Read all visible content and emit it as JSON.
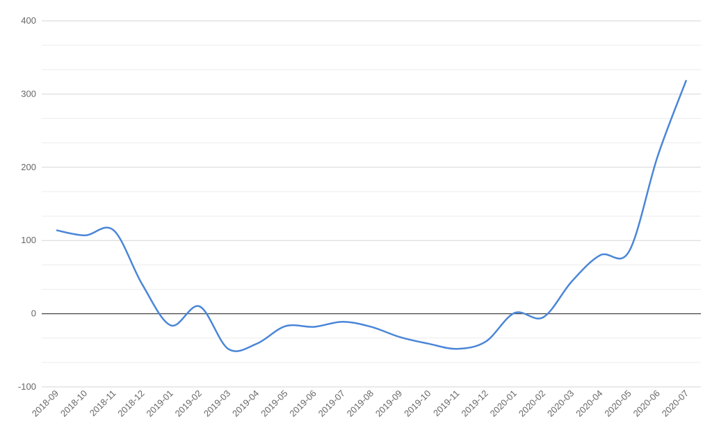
{
  "chart_data": {
    "type": "line",
    "categories": [
      "2018-09",
      "2018-10",
      "2018-11",
      "2018-12",
      "2019-01",
      "2019-02",
      "2019-03",
      "2019-04",
      "2019-05",
      "2019-06",
      "2019-07",
      "2019-08",
      "2019-09",
      "2019-10",
      "2019-11",
      "2019-12",
      "2020-01",
      "2020-02",
      "2020-03",
      "2020-04",
      "2020-05",
      "2020-06",
      "2020-07"
    ],
    "values": [
      114,
      107,
      114,
      40,
      -16,
      10,
      -48,
      -41,
      -17,
      -18,
      -11,
      -18,
      -32,
      -41,
      -48,
      -38,
      1,
      -5,
      44,
      80,
      85,
      215,
      319
    ],
    "color": "#4a86d8",
    "ylim": [
      -100,
      400
    ],
    "yticks": [
      -100,
      0,
      100,
      200,
      300,
      400
    ],
    "grid": true,
    "smooth": true
  }
}
